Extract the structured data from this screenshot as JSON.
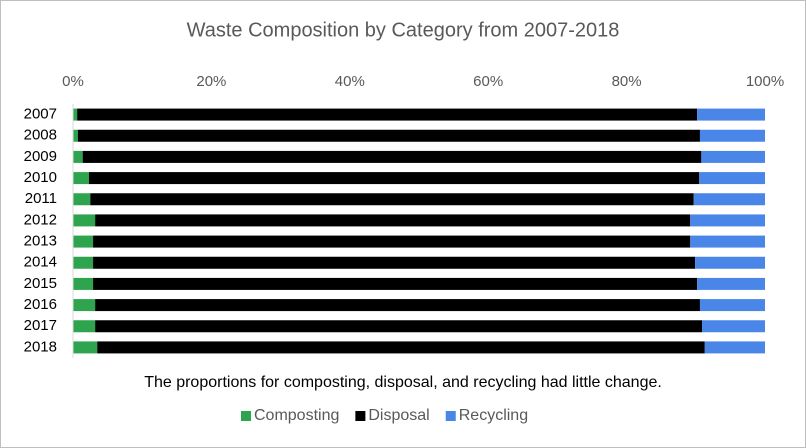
{
  "chart_data": {
    "type": "bar",
    "orientation": "horizontal",
    "stacked": true,
    "title": "Waste Composition by Category from 2007-2018",
    "annotation": "The proportions for composting, disposal, and recycling had little change.",
    "categories": [
      "2007",
      "2008",
      "2009",
      "2010",
      "2011",
      "2012",
      "2013",
      "2014",
      "2015",
      "2016",
      "2017",
      "2018"
    ],
    "series": [
      {
        "name": "Composting",
        "color": "#2ea44f",
        "values": [
          0.6,
          0.7,
          1.4,
          2.3,
          2.5,
          3.2,
          2.9,
          2.9,
          2.9,
          3.2,
          3.2,
          3.5
        ]
      },
      {
        "name": "Disposal",
        "color": "#000000",
        "values": [
          89.6,
          89.9,
          89.4,
          88.2,
          87.2,
          86.0,
          86.3,
          87.0,
          87.3,
          87.4,
          87.7,
          87.8
        ]
      },
      {
        "name": "Recycling",
        "color": "#4a86e8",
        "values": [
          9.8,
          9.4,
          9.2,
          9.5,
          10.3,
          10.8,
          10.8,
          10.1,
          9.8,
          9.4,
          9.1,
          8.7
        ]
      }
    ],
    "xlim": [
      0,
      100
    ],
    "xticks": [
      {
        "value": 0,
        "label": "0%"
      },
      {
        "value": 20,
        "label": "20%"
      },
      {
        "value": 40,
        "label": "40%"
      },
      {
        "value": 60,
        "label": "60%"
      },
      {
        "value": 80,
        "label": "80%"
      },
      {
        "value": 100,
        "label": "100%"
      }
    ],
    "legend": "bottom"
  }
}
